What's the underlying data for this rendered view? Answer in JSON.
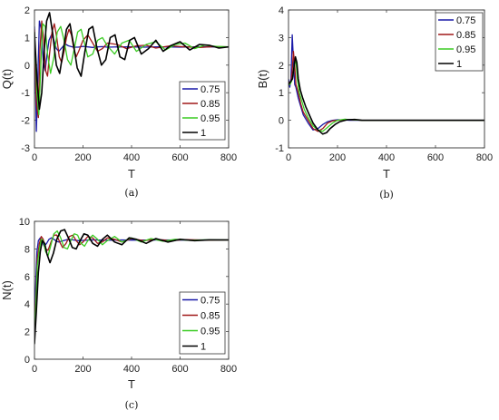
{
  "chart_data": [
    {
      "type": "line",
      "panel_label": "(a)",
      "xlabel": "T",
      "ylabel": "Q(t)",
      "xlim": [
        0,
        800
      ],
      "ylim": [
        -3,
        2
      ],
      "xticks": [
        "0",
        "200",
        "400",
        "600",
        "800"
      ],
      "yticks": [
        "-3",
        "-2",
        "-1",
        "0",
        "1",
        "2"
      ],
      "legend_position": "lower-right",
      "series": [
        {
          "name": "0.75",
          "color": "#1a1aa8",
          "x": [
            0,
            8,
            14,
            20,
            28,
            36,
            44,
            52,
            60,
            70,
            80,
            90,
            100,
            110,
            120,
            130,
            140,
            160,
            180,
            200,
            220,
            240,
            260,
            280,
            300,
            350,
            400,
            450,
            500,
            550,
            600,
            650,
            700,
            750,
            800
          ],
          "y": [
            1.4,
            -2.4,
            -0.5,
            1.6,
            1.3,
            0.2,
            -0.2,
            0.4,
            0.9,
            1.1,
            0.9,
            0.6,
            0.5,
            0.6,
            0.7,
            0.75,
            0.7,
            0.65,
            0.65,
            0.68,
            0.66,
            0.64,
            0.66,
            0.67,
            0.65,
            0.66,
            0.66,
            0.65,
            0.66,
            0.66,
            0.65,
            0.66,
            0.66,
            0.66,
            0.66
          ]
        },
        {
          "name": "0.85",
          "color": "#a01818",
          "x": [
            0,
            8,
            16,
            22,
            30,
            38,
            46,
            54,
            62,
            72,
            82,
            92,
            102,
            112,
            122,
            132,
            142,
            152,
            162,
            172,
            182,
            200,
            220,
            240,
            260,
            280,
            300,
            340,
            380,
            420,
            460,
            500,
            560,
            620,
            680,
            740,
            800
          ],
          "y": [
            1.3,
            -1.4,
            -1.9,
            0.5,
            1.6,
            0.9,
            -0.2,
            -0.4,
            0.4,
            1.2,
            1.5,
            1.0,
            0.3,
            0.1,
            0.5,
            1.0,
            1.3,
            1.1,
            0.6,
            0.3,
            0.5,
            0.9,
            1.1,
            0.8,
            0.5,
            0.6,
            0.8,
            0.75,
            0.6,
            0.7,
            0.72,
            0.62,
            0.7,
            0.66,
            0.64,
            0.67,
            0.66
          ]
        },
        {
          "name": "0.95",
          "color": "#3acc22",
          "x": [
            0,
            10,
            18,
            26,
            34,
            44,
            54,
            66,
            80,
            94,
            108,
            122,
            136,
            150,
            164,
            178,
            192,
            206,
            220,
            240,
            260,
            280,
            300,
            330,
            360,
            390,
            420,
            460,
            500,
            540,
            580,
            620,
            660,
            700,
            750,
            800
          ],
          "y": [
            1.2,
            -1.0,
            -1.8,
            0.0,
            1.5,
            1.4,
            0.4,
            -0.3,
            0.3,
            1.2,
            1.4,
            0.9,
            0.2,
            0.0,
            0.6,
            1.2,
            1.3,
            0.8,
            0.3,
            0.4,
            0.9,
            1.0,
            0.7,
            0.4,
            0.8,
            0.9,
            0.5,
            0.75,
            0.85,
            0.55,
            0.75,
            0.8,
            0.6,
            0.72,
            0.68,
            0.66
          ]
        },
        {
          "name": "1",
          "color": "#000000",
          "x": [
            0,
            10,
            20,
            30,
            40,
            50,
            62,
            76,
            90,
            104,
            118,
            132,
            146,
            160,
            176,
            192,
            208,
            224,
            240,
            258,
            276,
            294,
            312,
            332,
            352,
            372,
            392,
            412,
            440,
            470,
            500,
            530,
            560,
            600,
            640,
            680,
            720,
            760,
            800
          ],
          "y": [
            1.2,
            -0.5,
            -1.6,
            -1.0,
            0.5,
            1.6,
            1.9,
            1.1,
            0.0,
            -0.3,
            0.5,
            1.3,
            1.5,
            0.8,
            -0.1,
            -0.4,
            0.5,
            1.3,
            1.4,
            0.6,
            0.0,
            0.2,
            1.0,
            1.1,
            0.3,
            0.2,
            0.9,
            1.0,
            0.4,
            0.6,
            0.9,
            0.5,
            0.7,
            0.85,
            0.55,
            0.75,
            0.72,
            0.62,
            0.66
          ]
        }
      ]
    },
    {
      "type": "line",
      "panel_label": "(b)",
      "xlabel": "T",
      "ylabel": "B(t)",
      "xlim": [
        0,
        800
      ],
      "ylim": [
        -1,
        4
      ],
      "xticks": [
        "0",
        "200",
        "400",
        "600",
        "800"
      ],
      "yticks": [
        "-1",
        "0",
        "1",
        "2",
        "3",
        "4"
      ],
      "legend_position": "top-right",
      "series": [
        {
          "name": "0.75",
          "color": "#1a1aa8",
          "x": [
            0,
            5,
            10,
            15,
            20,
            25,
            30,
            40,
            50,
            60,
            80,
            100,
            120,
            140,
            160,
            180,
            200,
            250,
            300,
            400,
            500,
            600,
            700,
            800
          ],
          "y": [
            1.5,
            1.2,
            1.5,
            3.1,
            2.2,
            1.3,
            1.2,
            0.8,
            0.5,
            0.2,
            -0.1,
            -0.35,
            -0.3,
            -0.15,
            -0.05,
            0.0,
            0.02,
            0.0,
            0.0,
            0.0,
            0.0,
            0.0,
            0.0,
            0.0
          ]
        },
        {
          "name": "0.85",
          "color": "#a01818",
          "x": [
            0,
            5,
            10,
            15,
            20,
            25,
            30,
            40,
            50,
            60,
            80,
            100,
            120,
            140,
            160,
            180,
            200,
            240,
            300,
            400,
            500,
            600,
            700,
            800
          ],
          "y": [
            1.4,
            1.3,
            1.4,
            1.8,
            2.5,
            2.0,
            1.3,
            1.0,
            0.6,
            0.3,
            0.0,
            -0.3,
            -0.4,
            -0.3,
            -0.1,
            -0.02,
            0.0,
            0.03,
            0.0,
            0.0,
            0.0,
            0.0,
            0.0,
            0.0
          ]
        },
        {
          "name": "0.95",
          "color": "#3acc22",
          "x": [
            0,
            6,
            12,
            18,
            24,
            30,
            36,
            44,
            54,
            64,
            80,
            100,
            120,
            140,
            160,
            180,
            200,
            230,
            260,
            300,
            400,
            500,
            600,
            700,
            800
          ],
          "y": [
            1.3,
            1.3,
            1.4,
            1.6,
            2.0,
            2.2,
            1.5,
            1.0,
            0.7,
            0.4,
            0.1,
            -0.2,
            -0.35,
            -0.4,
            -0.25,
            -0.1,
            0.0,
            0.04,
            0.02,
            0.0,
            0.0,
            0.0,
            0.0,
            0.0,
            0.0
          ]
        },
        {
          "name": "1",
          "color": "#000000",
          "x": [
            0,
            8,
            16,
            22,
            28,
            34,
            40,
            48,
            58,
            70,
            85,
            100,
            120,
            140,
            155,
            170,
            190,
            210,
            240,
            270,
            300,
            400,
            500,
            600,
            700,
            800
          ],
          "y": [
            1.3,
            1.4,
            1.5,
            1.9,
            2.3,
            2.1,
            1.5,
            1.1,
            0.8,
            0.5,
            0.2,
            -0.1,
            -0.35,
            -0.5,
            -0.45,
            -0.3,
            -0.15,
            -0.05,
            0.02,
            0.03,
            0.0,
            0.0,
            0.0,
            0.0,
            0.0,
            0.0
          ]
        }
      ]
    },
    {
      "type": "line",
      "panel_label": "(c)",
      "xlabel": "T",
      "ylabel": "N(t)",
      "xlim": [
        0,
        800
      ],
      "ylim": [
        0,
        10
      ],
      "xticks": [
        "0",
        "200",
        "400",
        "600",
        "800"
      ],
      "yticks": [
        "0",
        "2",
        "4",
        "6",
        "8",
        "10"
      ],
      "legend_position": "lower-right",
      "series": [
        {
          "name": "0.75",
          "color": "#1a1aa8",
          "x": [
            0,
            4,
            10,
            16,
            24,
            32,
            40,
            50,
            60,
            70,
            80,
            90,
            100,
            120,
            140,
            160,
            180,
            200,
            240,
            280,
            320,
            360,
            400,
            460,
            520,
            600,
            700,
            800
          ],
          "y": [
            1.5,
            5.0,
            7.8,
            8.6,
            8.8,
            8.5,
            8.2,
            8.4,
            8.7,
            8.8,
            8.7,
            8.55,
            8.5,
            8.6,
            8.7,
            8.65,
            8.6,
            8.62,
            8.66,
            8.63,
            8.64,
            8.65,
            8.64,
            8.64,
            8.65,
            8.64,
            8.65,
            8.65
          ]
        },
        {
          "name": "0.85",
          "color": "#a01818",
          "x": [
            0,
            6,
            12,
            20,
            28,
            36,
            46,
            56,
            68,
            80,
            92,
            104,
            116,
            130,
            144,
            158,
            172,
            186,
            200,
            220,
            240,
            260,
            280,
            300,
            330,
            360,
            400,
            450,
            500,
            560,
            620,
            700,
            800
          ],
          "y": [
            1.3,
            4.5,
            7.3,
            8.4,
            8.9,
            8.7,
            8.0,
            7.9,
            8.5,
            9.0,
            9.0,
            8.5,
            8.1,
            8.4,
            8.9,
            9.0,
            8.6,
            8.3,
            8.5,
            8.9,
            8.8,
            8.4,
            8.5,
            8.8,
            8.7,
            8.5,
            8.75,
            8.6,
            8.7,
            8.6,
            8.68,
            8.64,
            8.65
          ]
        },
        {
          "name": "0.95",
          "color": "#3acc22",
          "x": [
            0,
            6,
            12,
            20,
            28,
            36,
            46,
            56,
            68,
            80,
            94,
            108,
            122,
            136,
            150,
            164,
            178,
            192,
            206,
            220,
            240,
            260,
            280,
            300,
            330,
            360,
            400,
            440,
            480,
            530,
            580,
            640,
            700,
            800
          ],
          "y": [
            1.2,
            4.0,
            6.8,
            8.0,
            8.7,
            8.6,
            7.8,
            7.5,
            8.3,
            9.1,
            9.3,
            8.8,
            8.1,
            8.0,
            8.6,
            9.1,
            9.0,
            8.4,
            8.2,
            8.6,
            9.0,
            8.7,
            8.3,
            8.6,
            8.9,
            8.5,
            8.8,
            8.5,
            8.75,
            8.55,
            8.7,
            8.62,
            8.66,
            8.65
          ]
        },
        {
          "name": "1",
          "color": "#000000",
          "x": [
            0,
            8,
            16,
            24,
            32,
            42,
            52,
            64,
            78,
            92,
            108,
            124,
            140,
            156,
            172,
            188,
            204,
            220,
            240,
            260,
            280,
            300,
            330,
            360,
            390,
            420,
            460,
            500,
            550,
            600,
            660,
            720,
            800
          ],
          "y": [
            1.1,
            3.5,
            6.3,
            7.8,
            8.6,
            8.4,
            7.6,
            7.0,
            7.7,
            8.7,
            9.3,
            9.4,
            8.8,
            8.1,
            8.0,
            8.6,
            9.1,
            9.0,
            8.4,
            8.2,
            8.7,
            9.0,
            8.5,
            8.3,
            8.8,
            8.7,
            8.4,
            8.75,
            8.5,
            8.7,
            8.6,
            8.66,
            8.65
          ]
        }
      ]
    }
  ]
}
